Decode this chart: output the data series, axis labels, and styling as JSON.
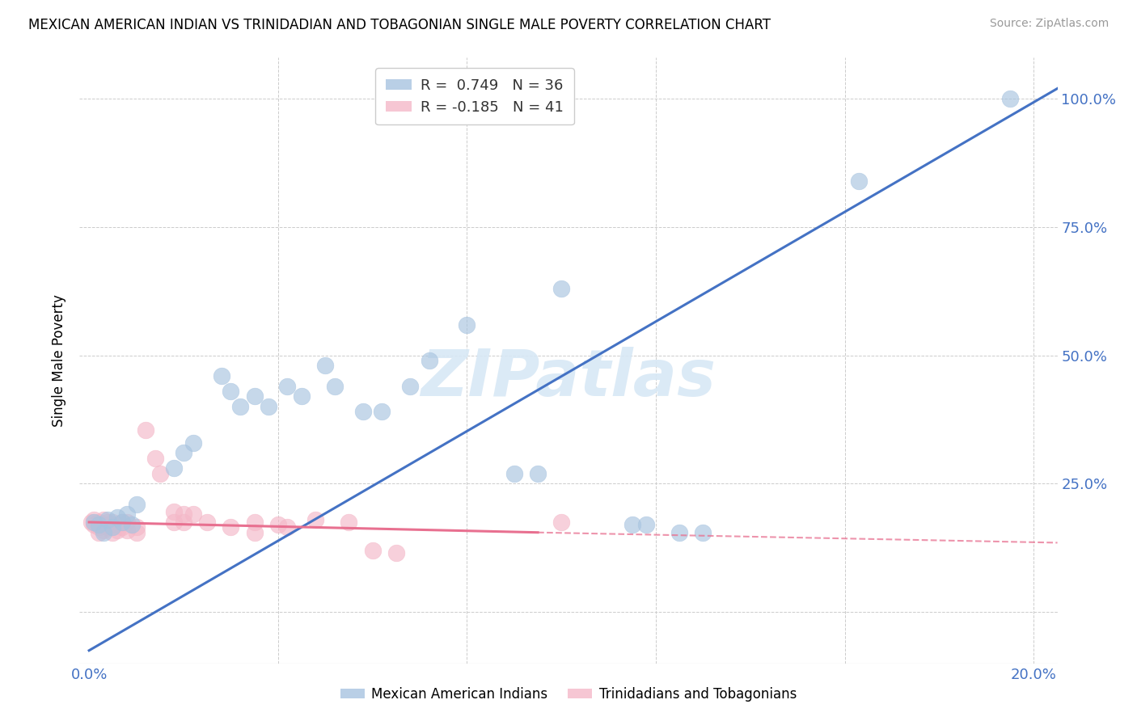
{
  "title": "MEXICAN AMERICAN INDIAN VS TRINIDADIAN AND TOBAGONIAN SINGLE MALE POVERTY CORRELATION CHART",
  "source": "Source: ZipAtlas.com",
  "ylabel": "Single Male Poverty",
  "blue_R": 0.749,
  "blue_N": 36,
  "pink_R": -0.185,
  "pink_N": 41,
  "watermark": "ZIPatlas",
  "blue_color": "#A8C4E0",
  "pink_color": "#F4B8C8",
  "blue_line_color": "#4472C4",
  "pink_line_color": "#E87090",
  "legend_label_blue": "Mexican American Indians",
  "legend_label_pink": "Trinidadians and Tobagonians",
  "axis_color": "#4472C4",
  "grid_color": "#CCCCCC",
  "blue_dots": [
    [
      0.001,
      0.175
    ],
    [
      0.002,
      0.17
    ],
    [
      0.003,
      0.155
    ],
    [
      0.004,
      0.18
    ],
    [
      0.005,
      0.165
    ],
    [
      0.006,
      0.185
    ],
    [
      0.007,
      0.175
    ],
    [
      0.008,
      0.19
    ],
    [
      0.009,
      0.17
    ],
    [
      0.01,
      0.21
    ],
    [
      0.018,
      0.28
    ],
    [
      0.02,
      0.31
    ],
    [
      0.022,
      0.33
    ],
    [
      0.028,
      0.46
    ],
    [
      0.03,
      0.43
    ],
    [
      0.032,
      0.4
    ],
    [
      0.035,
      0.42
    ],
    [
      0.038,
      0.4
    ],
    [
      0.042,
      0.44
    ],
    [
      0.045,
      0.42
    ],
    [
      0.05,
      0.48
    ],
    [
      0.052,
      0.44
    ],
    [
      0.058,
      0.39
    ],
    [
      0.062,
      0.39
    ],
    [
      0.068,
      0.44
    ],
    [
      0.072,
      0.49
    ],
    [
      0.08,
      0.56
    ],
    [
      0.09,
      0.27
    ],
    [
      0.095,
      0.27
    ],
    [
      0.1,
      0.63
    ],
    [
      0.115,
      0.17
    ],
    [
      0.118,
      0.17
    ],
    [
      0.125,
      0.155
    ],
    [
      0.13,
      0.155
    ],
    [
      0.163,
      0.84
    ],
    [
      0.195,
      1.0
    ]
  ],
  "pink_dots": [
    [
      0.0005,
      0.175
    ],
    [
      0.001,
      0.18
    ],
    [
      0.001,
      0.17
    ],
    [
      0.002,
      0.175
    ],
    [
      0.002,
      0.165
    ],
    [
      0.002,
      0.155
    ],
    [
      0.003,
      0.18
    ],
    [
      0.003,
      0.17
    ],
    [
      0.003,
      0.16
    ],
    [
      0.004,
      0.175
    ],
    [
      0.004,
      0.165
    ],
    [
      0.005,
      0.175
    ],
    [
      0.005,
      0.165
    ],
    [
      0.005,
      0.155
    ],
    [
      0.006,
      0.17
    ],
    [
      0.006,
      0.16
    ],
    [
      0.007,
      0.175
    ],
    [
      0.007,
      0.165
    ],
    [
      0.008,
      0.175
    ],
    [
      0.008,
      0.16
    ],
    [
      0.01,
      0.165
    ],
    [
      0.01,
      0.155
    ],
    [
      0.012,
      0.355
    ],
    [
      0.014,
      0.3
    ],
    [
      0.015,
      0.27
    ],
    [
      0.018,
      0.195
    ],
    [
      0.018,
      0.175
    ],
    [
      0.02,
      0.19
    ],
    [
      0.02,
      0.175
    ],
    [
      0.022,
      0.19
    ],
    [
      0.025,
      0.175
    ],
    [
      0.03,
      0.165
    ],
    [
      0.035,
      0.175
    ],
    [
      0.035,
      0.155
    ],
    [
      0.04,
      0.17
    ],
    [
      0.042,
      0.165
    ],
    [
      0.048,
      0.18
    ],
    [
      0.055,
      0.175
    ],
    [
      0.06,
      0.12
    ],
    [
      0.065,
      0.115
    ],
    [
      0.1,
      0.175
    ]
  ],
  "blue_line": {
    "x0": 0.0,
    "y0": -0.075,
    "x1": 0.205,
    "y1": 1.02
  },
  "pink_line_solid": {
    "x0": 0.0,
    "y0": 0.175,
    "x1": 0.095,
    "y1": 0.155
  },
  "pink_line_dash": {
    "x0": 0.095,
    "y0": 0.155,
    "x1": 0.205,
    "y1": 0.135
  },
  "xlim": [
    -0.002,
    0.205
  ],
  "ylim": [
    -0.1,
    1.08
  ],
  "xticks": [
    0.0,
    0.04,
    0.08,
    0.12,
    0.16,
    0.2
  ],
  "yticks": [
    0.0,
    0.25,
    0.5,
    0.75,
    1.0
  ]
}
